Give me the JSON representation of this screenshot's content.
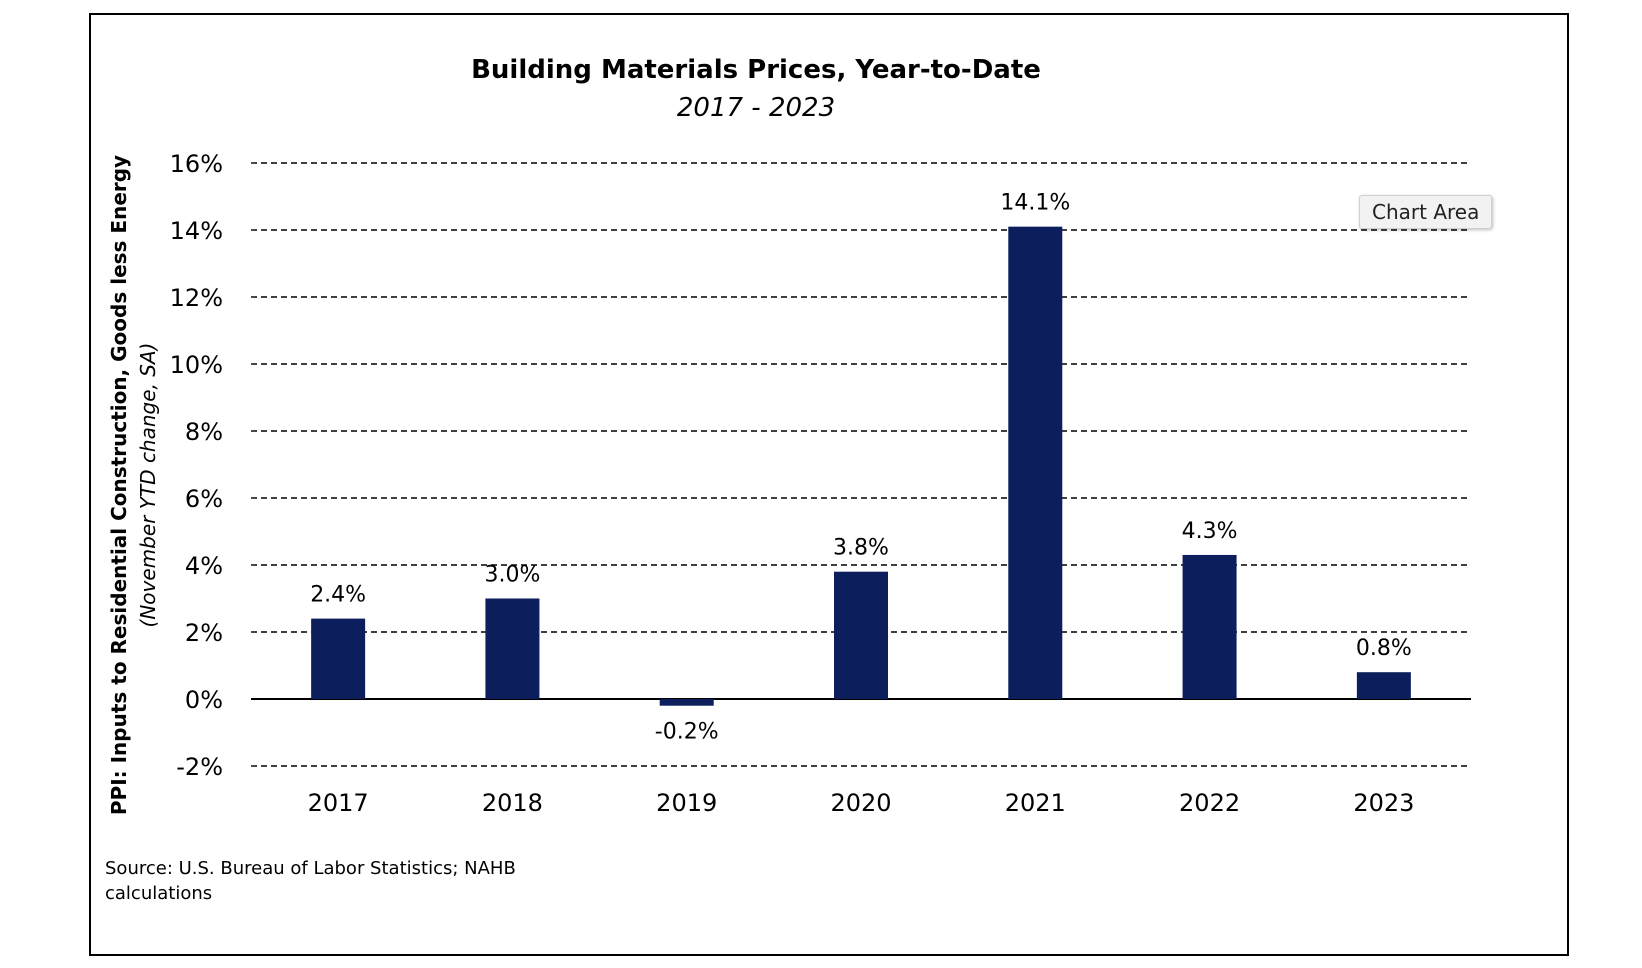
{
  "chart_data": {
    "type": "bar",
    "title": "Building Materials Prices, Year-to-Date",
    "subtitle": "2017 - 2023",
    "ylabel": "PPI: Inputs to Residential Construction, Goods less Energy",
    "ylabel_sub": "(November YTD change, SA)",
    "xlabel": "",
    "categories": [
      "2017",
      "2018",
      "2019",
      "2020",
      "2021",
      "2022",
      "2023"
    ],
    "values": [
      2.4,
      3.0,
      -0.2,
      3.8,
      14.1,
      4.3,
      0.8
    ],
    "data_labels": [
      "2.4%",
      "3.0%",
      "-0.2%",
      "3.8%",
      "14.1%",
      "4.3%",
      "0.8%"
    ],
    "ylim": [
      -2,
      16
    ],
    "yticks": [
      -2,
      0,
      2,
      4,
      6,
      8,
      10,
      12,
      14,
      16
    ],
    "ytick_labels": [
      "-2%",
      "0%",
      "2%",
      "4%",
      "6%",
      "8%",
      "10%",
      "12%",
      "14%",
      "16%"
    ],
    "grid": "horizontal dashed",
    "legend": "none",
    "bar_color": "#0c1f5c",
    "source": "Source: U.S. Bureau of Labor Statistics; NAHB calculations",
    "source_lines": [
      "Source: U.S. Bureau of Labor Statistics; NAHB",
      "calculations"
    ]
  },
  "tooltip": {
    "label": "Chart Area"
  }
}
